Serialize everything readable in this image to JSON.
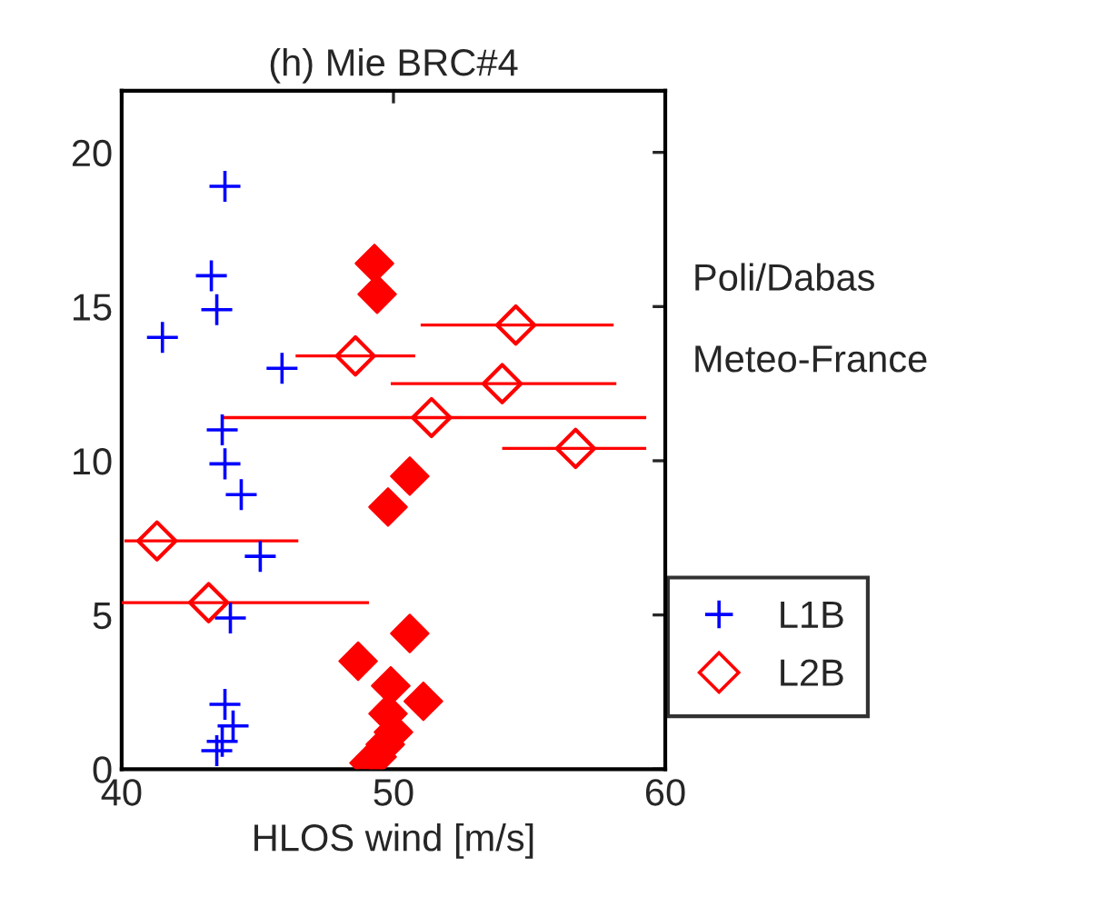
{
  "chart_data": {
    "type": "scatter",
    "title": "(h) Mie BRC#4",
    "xlabel": "HLOS wind [m/s]",
    "xlim": [
      40,
      60
    ],
    "xticks": [
      40,
      50,
      60
    ],
    "ylim": [
      0,
      22
    ],
    "yticks": [
      0,
      5,
      10,
      15,
      20
    ],
    "grid": false,
    "legend": "bottom right",
    "annotations": [
      "Poli/Dabas",
      "Meteo-France"
    ],
    "series": [
      {
        "name": "L1B",
        "color": "#0000ff",
        "marker": "cross",
        "x": [
          43.8,
          43.3,
          43.5,
          41.5,
          45.9,
          43.7,
          43.8,
          44.4,
          45.1,
          44.0,
          43.8,
          44.1,
          43.7,
          43.5
        ],
        "values": [
          18.9,
          16.0,
          14.9,
          14.0,
          13.0,
          11.0,
          9.9,
          8.9,
          6.9,
          4.9,
          2.1,
          1.4,
          0.9,
          0.6
        ]
      },
      {
        "name": "L2B",
        "color": "#ff0000",
        "marker": "diamond",
        "x": [
          54.5,
          48.6,
          54.0,
          51.4,
          56.7,
          41.3,
          43.2
        ],
        "values": [
          14.4,
          13.4,
          12.5,
          11.4,
          10.4,
          7.4,
          5.4
        ],
        "xerrors": [
          [
            51.0,
            58.1
          ],
          [
            46.4,
            50.8
          ],
          [
            49.9,
            58.2
          ],
          [
            43.7,
            59.3
          ],
          [
            54.0,
            59.3
          ],
          [
            40.1,
            46.5
          ],
          [
            40.0,
            49.1
          ]
        ]
      },
      {
        "color": "#ff0000",
        "marker": "diamond",
        "x": [
          49.3,
          49.4,
          50.6,
          49.8,
          50.6,
          48.7,
          49.9,
          51.1,
          49.8,
          50.0,
          49.7,
          49.4,
          49.1
        ],
        "values": [
          16.4,
          15.4,
          9.5,
          8.5,
          4.4,
          3.5,
          2.7,
          2.2,
          1.8,
          1.2,
          0.8,
          0.4,
          0.2
        ]
      }
    ]
  }
}
